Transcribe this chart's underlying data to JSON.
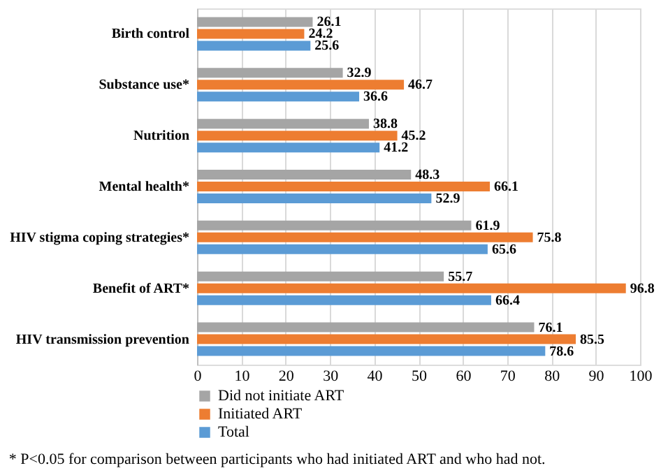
{
  "chart_data": {
    "type": "bar",
    "orientation": "horizontal",
    "categories": [
      "Birth control",
      "Substance use*",
      "Nutrition",
      "Mental health*",
      "HIV stigma coping strategies*",
      "Benefit of ART*",
      "HIV transmission prevention"
    ],
    "series": [
      {
        "name": "Did not initiate ART",
        "color": "#a5a5a5",
        "values": [
          26.1,
          32.9,
          38.8,
          48.3,
          61.9,
          55.7,
          76.1
        ]
      },
      {
        "name": "Initiated ART",
        "color": "#ed7d31",
        "values": [
          24.2,
          46.7,
          45.2,
          66.1,
          75.8,
          96.8,
          85.5
        ]
      },
      {
        "name": "Total",
        "color": "#5b9bd5",
        "values": [
          25.6,
          36.6,
          41.2,
          52.9,
          65.6,
          66.4,
          78.6
        ]
      }
    ],
    "xlim": [
      0,
      100
    ],
    "xticks": [
      0,
      10,
      20,
      30,
      40,
      50,
      60,
      70,
      80,
      90,
      100
    ],
    "grid": "x",
    "legend": "bottom left",
    "data_labels": true,
    "annotations": [
      "* P<0.05 for comparison between participants who had initiated ART and who had not."
    ]
  }
}
